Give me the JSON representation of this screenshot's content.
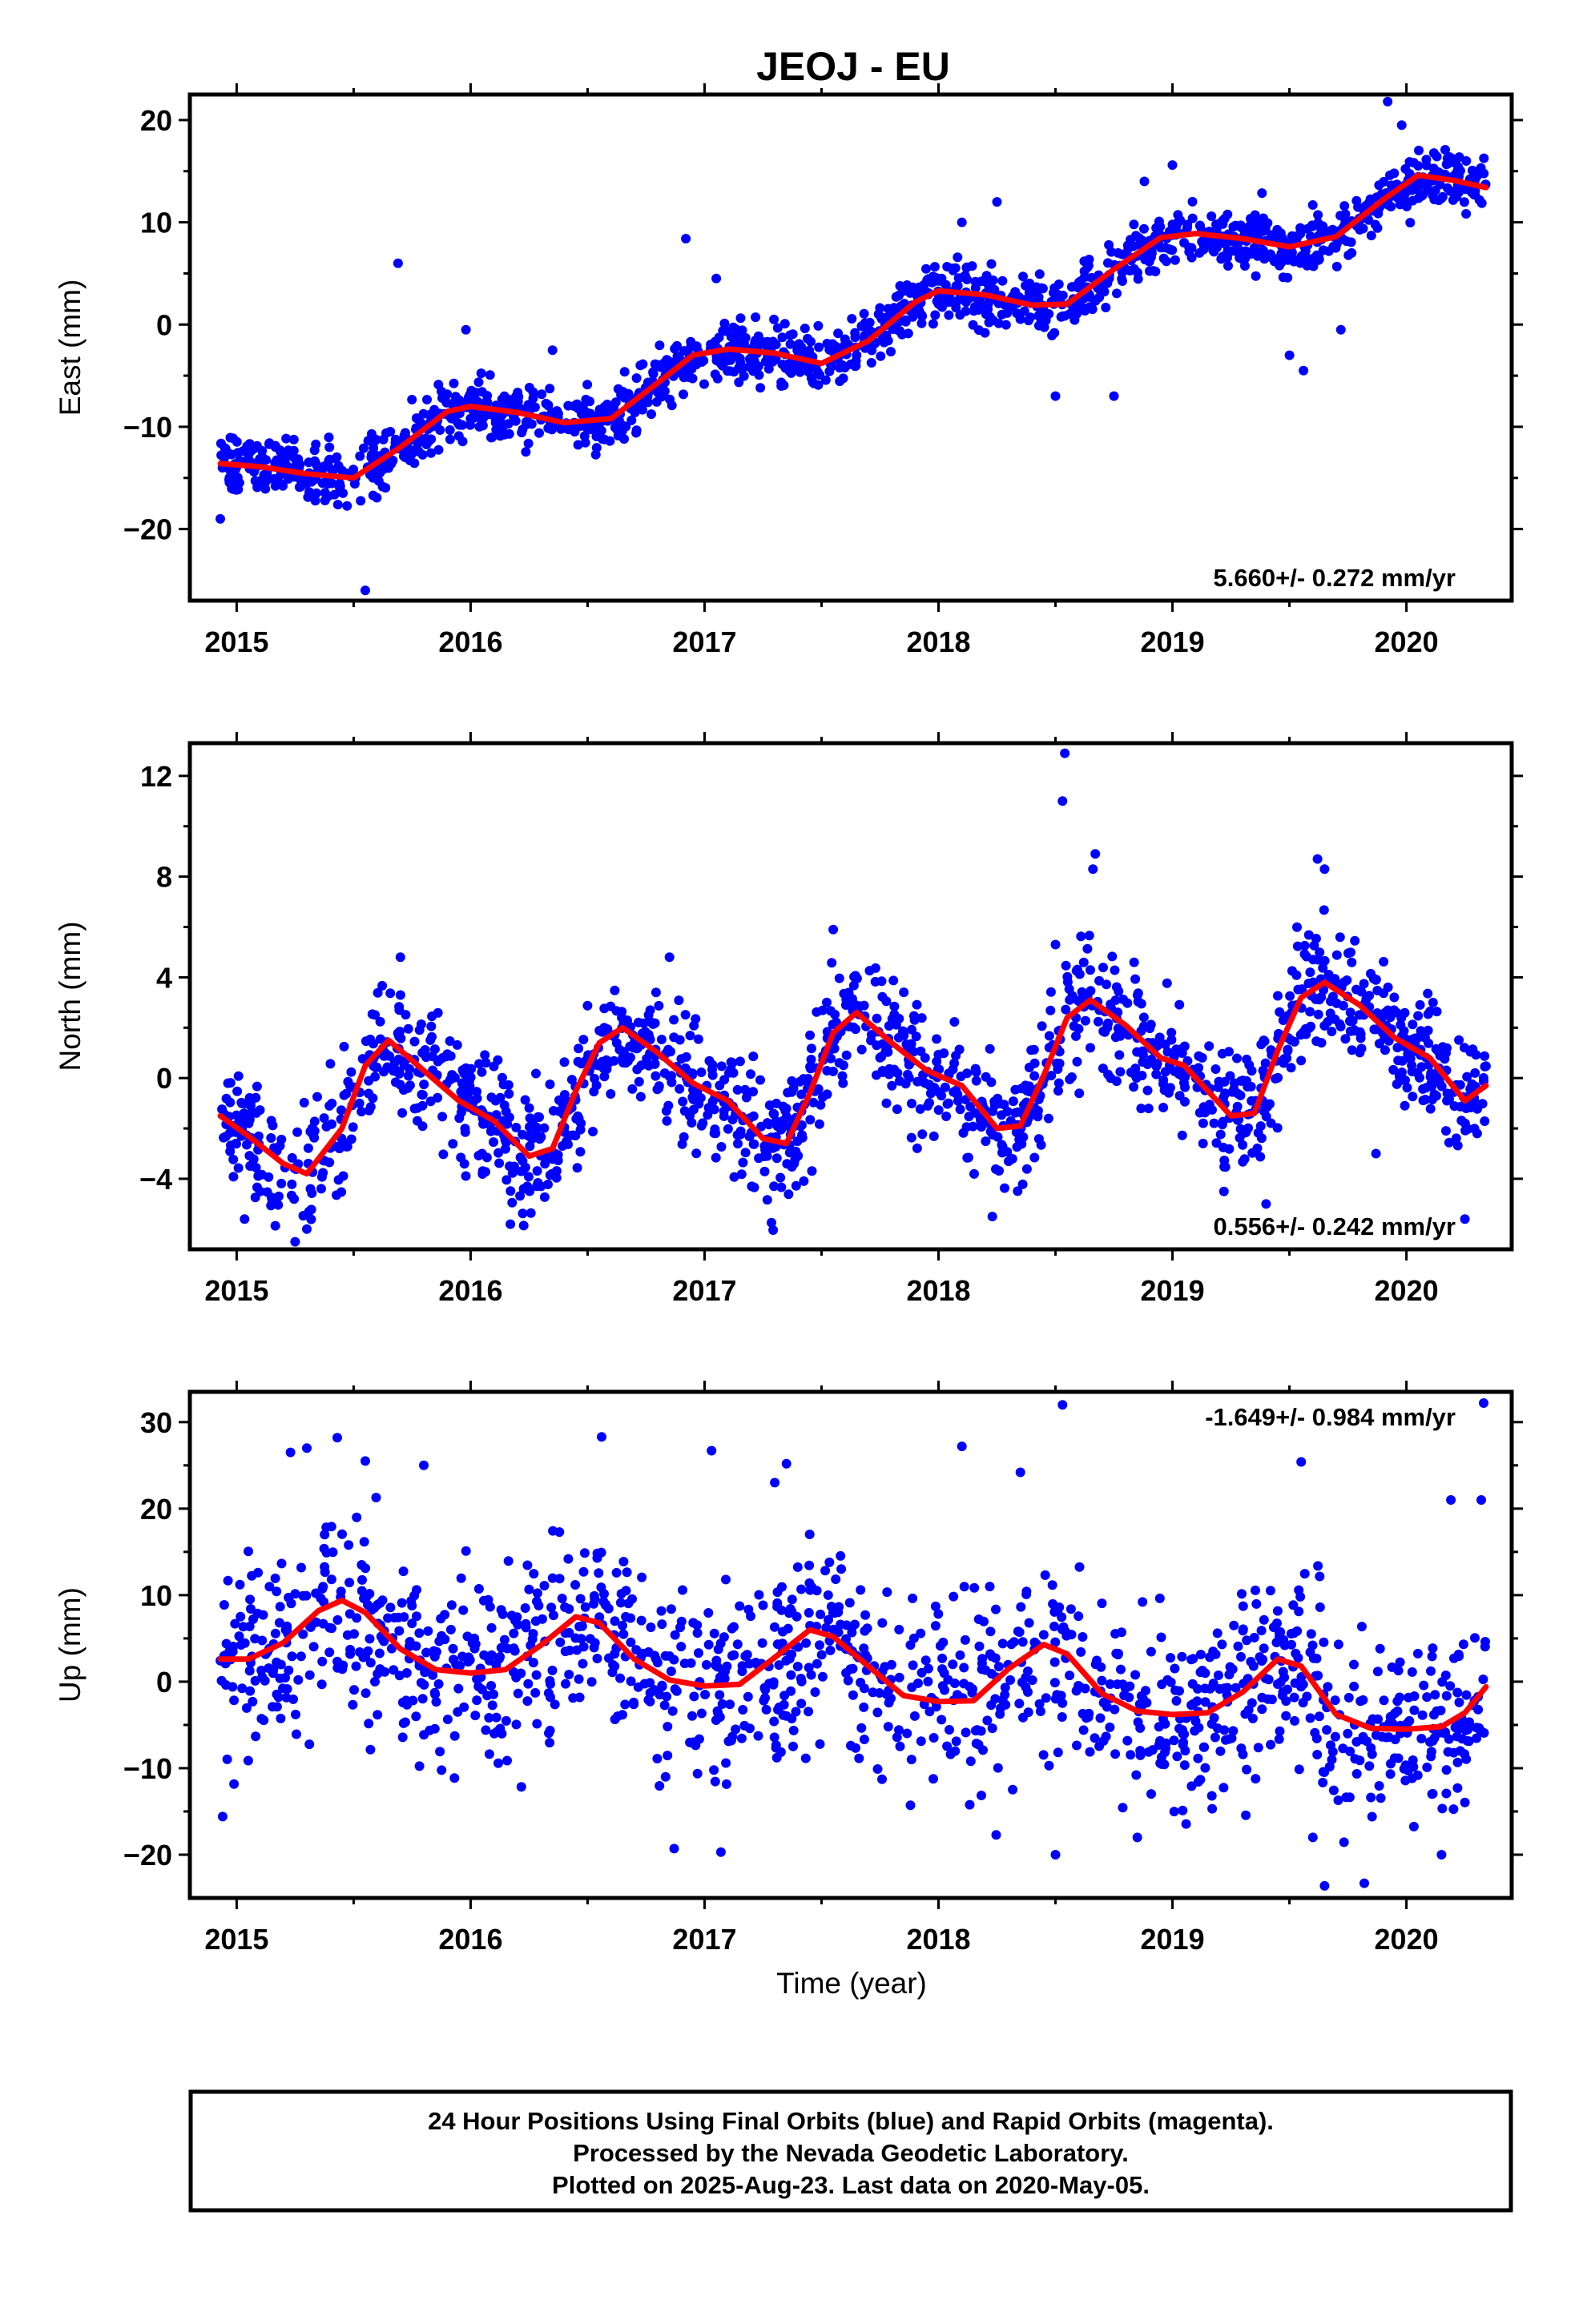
{
  "title": "JEOJ - EU",
  "x_axis_label": "Time (year)",
  "x_ticks": [
    "2015",
    "2016",
    "2017",
    "2018",
    "2019",
    "2020"
  ],
  "colors": {
    "data": "#0000ff",
    "model": "#ff0000",
    "frame": "#000000"
  },
  "footer": {
    "line1": "24 Hour Positions Using Final Orbits (blue) and Rapid Orbits (magenta).",
    "line2": "Processed by the Nevada Geodetic Laboratory.",
    "line3": "Plotted on 2025-Aug-23. Last data on 2020-May-05."
  },
  "chart_data": [
    {
      "type": "scatter",
      "component": "east",
      "ylabel": "East (mm)",
      "rate_label": "5.660+/- 0.272 mm/yr",
      "rate_position": "bottom-right",
      "xlim": [
        2014.8,
        2020.45
      ],
      "ylim": [
        -27,
        22.5
      ],
      "y_ticks": [
        20,
        10,
        0,
        -10,
        -20
      ],
      "y_tick_labels": [
        "20",
        "10",
        "0",
        "−10",
        "−20"
      ],
      "data_range_x": [
        2014.93,
        2020.34
      ],
      "rate_mm_per_yr": 5.66,
      "model_curve": {
        "x": [
          2014.93,
          2015.1,
          2015.3,
          2015.5,
          2015.7,
          2015.9,
          2016.0,
          2016.2,
          2016.4,
          2016.6,
          2016.8,
          2016.95,
          2017.1,
          2017.3,
          2017.5,
          2017.7,
          2017.9,
          2018.0,
          2018.2,
          2018.4,
          2018.55,
          2018.75,
          2018.95,
          2019.1,
          2019.3,
          2019.5,
          2019.7,
          2019.9,
          2020.05,
          2020.2,
          2020.34
        ],
        "y": [
          -13.6,
          -13.9,
          -14.6,
          -15,
          -12,
          -8.5,
          -8,
          -8.6,
          -9.6,
          -9.2,
          -5.7,
          -3,
          -2.4,
          -2.8,
          -3.8,
          -1.6,
          2.2,
          3.3,
          2.9,
          1.9,
          2,
          5.4,
          8.5,
          8.9,
          8.4,
          7.6,
          8.6,
          12.2,
          14.6,
          14.1,
          13.4
        ]
      },
      "outliers": [
        [
          2014.93,
          -19
        ],
        [
          2015.55,
          -26
        ],
        [
          2015.69,
          6
        ],
        [
          2015.98,
          -0.5
        ],
        [
          2016.35,
          -2.5
        ],
        [
          2016.92,
          8.4
        ],
        [
          2017.05,
          4.5
        ],
        [
          2017.65,
          -3
        ],
        [
          2018.1,
          10
        ],
        [
          2018.25,
          12
        ],
        [
          2018.5,
          -7
        ],
        [
          2018.75,
          -7
        ],
        [
          2018.88,
          14
        ],
        [
          2019.0,
          15.6
        ],
        [
          2019.5,
          -3
        ],
        [
          2019.56,
          -4.5
        ],
        [
          2019.72,
          -0.5
        ],
        [
          2019.92,
          21.8
        ],
        [
          2019.98,
          19.5
        ]
      ]
    },
    {
      "type": "scatter",
      "component": "north",
      "ylabel": "North (mm)",
      "rate_label": "0.556+/- 0.242 mm/yr",
      "rate_position": "bottom-right",
      "xlim": [
        2014.8,
        2020.45
      ],
      "ylim": [
        -6.8,
        13.3
      ],
      "y_ticks": [
        12,
        8,
        4,
        0,
        -4
      ],
      "y_tick_labels": [
        "12",
        "8",
        "4",
        "0",
        "−4"
      ],
      "data_range_x": [
        2014.93,
        2020.34
      ],
      "rate_mm_per_yr": 0.556,
      "model_curve": {
        "x": [
          2014.93,
          2015.05,
          2015.2,
          2015.3,
          2015.45,
          2015.55,
          2015.65,
          2015.8,
          2015.95,
          2016.1,
          2016.25,
          2016.35,
          2016.45,
          2016.55,
          2016.65,
          2016.8,
          2016.95,
          2017.1,
          2017.25,
          2017.35,
          2017.45,
          2017.55,
          2017.65,
          2017.8,
          2017.95,
          2018.1,
          2018.25,
          2018.35,
          2018.45,
          2018.55,
          2018.65,
          2018.8,
          2018.95,
          2019.05,
          2019.25,
          2019.35,
          2019.45,
          2019.55,
          2019.65,
          2019.8,
          2019.95,
          2020.1,
          2020.25,
          2020.34
        ],
        "y": [
          -1.5,
          -2.3,
          -3.4,
          -3.8,
          -2,
          0.5,
          1.5,
          0.3,
          -0.9,
          -1.7,
          -3.1,
          -2.8,
          -0.5,
          1.4,
          2,
          1,
          -0.2,
          -0.9,
          -2.4,
          -2.6,
          -0.6,
          1.8,
          2.6,
          1.4,
          0.3,
          -0.3,
          -2,
          -1.9,
          0.1,
          2.4,
          3.1,
          2.1,
          0.8,
          0.5,
          -1.5,
          -1.4,
          1.1,
          3.2,
          3.8,
          2.9,
          1.6,
          0.8,
          -0.9,
          -0.3
        ]
      },
      "outliers": [
        [
          2015.25,
          -6.5
        ],
        [
          2015.3,
          -6
        ],
        [
          2015.7,
          4.8
        ],
        [
          2016.17,
          -5.8
        ],
        [
          2016.85,
          4.8
        ],
        [
          2017.55,
          5.9
        ],
        [
          2018.23,
          -5.5
        ],
        [
          2018.5,
          5.3
        ],
        [
          2018.53,
          11
        ],
        [
          2018.54,
          12.9
        ],
        [
          2018.67,
          8.9
        ],
        [
          2018.66,
          8.3
        ],
        [
          2019.22,
          -4.5
        ],
        [
          2019.4,
          -5
        ],
        [
          2019.62,
          8.7
        ],
        [
          2019.65,
          8.3
        ],
        [
          2019.87,
          -3
        ],
        [
          2020.25,
          -5.6
        ]
      ]
    },
    {
      "type": "scatter",
      "component": "up",
      "ylabel": "Up (mm)",
      "rate_label": "-1.649+/- 0.984 mm/yr",
      "rate_position": "top-right",
      "xlim": [
        2014.8,
        2020.45
      ],
      "ylim": [
        -25,
        33.5
      ],
      "y_ticks": [
        30,
        20,
        10,
        0,
        -10,
        -20
      ],
      "y_tick_labels": [
        "30",
        "20",
        "10",
        "0",
        "−10",
        "−20"
      ],
      "data_range_x": [
        2014.93,
        2020.34
      ],
      "rate_mm_per_yr": -1.649,
      "model_curve": {
        "x": [
          2014.93,
          2015.05,
          2015.2,
          2015.35,
          2015.45,
          2015.55,
          2015.7,
          2015.85,
          2016.0,
          2016.15,
          2016.3,
          2016.45,
          2016.55,
          2016.7,
          2016.85,
          2017.0,
          2017.15,
          2017.3,
          2017.45,
          2017.55,
          2017.7,
          2017.85,
          2018.0,
          2018.15,
          2018.3,
          2018.45,
          2018.55,
          2018.7,
          2018.85,
          2019.0,
          2019.15,
          2019.3,
          2019.45,
          2019.55,
          2019.7,
          2019.85,
          2020.0,
          2020.15,
          2020.25,
          2020.34
        ],
        "y": [
          2.6,
          2.6,
          4.5,
          8.2,
          9.4,
          8,
          3.8,
          1.4,
          1,
          1.4,
          4.2,
          7.5,
          6.8,
          2.6,
          0.2,
          -0.5,
          -0.3,
          2.8,
          6,
          5.2,
          1.8,
          -1.6,
          -2.3,
          -2.2,
          1.5,
          4.3,
          3.2,
          -1.4,
          -3.4,
          -3.8,
          -3.6,
          -1.2,
          2.6,
          1.8,
          -3.8,
          -5.4,
          -5.5,
          -5.2,
          -3.6,
          -0.6
        ]
      },
      "outliers": [
        [
          2014.94,
          -15.6
        ],
        [
          2015.23,
          26.5
        ],
        [
          2015.3,
          27
        ],
        [
          2015.43,
          28.2
        ],
        [
          2015.55,
          25.5
        ],
        [
          2015.8,
          25
        ],
        [
          2016.56,
          28.3
        ],
        [
          2016.87,
          -19.3
        ],
        [
          2017.03,
          26.7
        ],
        [
          2017.07,
          -19.7
        ],
        [
          2017.3,
          23
        ],
        [
          2017.35,
          25.2
        ],
        [
          2018.1,
          27.2
        ],
        [
          2018.35,
          24.2
        ],
        [
          2018.5,
          -20
        ],
        [
          2018.53,
          32
        ],
        [
          2018.85,
          -18
        ],
        [
          2019.55,
          25.4
        ],
        [
          2019.6,
          -18
        ],
        [
          2019.65,
          -23.6
        ],
        [
          2019.82,
          -23.3
        ],
        [
          2020.15,
          -20
        ],
        [
          2020.19,
          21
        ],
        [
          2020.32,
          21
        ],
        [
          2020.33,
          32.2
        ]
      ]
    }
  ]
}
